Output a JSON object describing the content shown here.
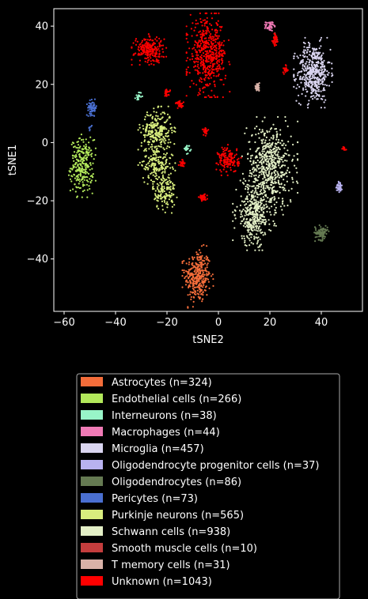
{
  "chart_data": {
    "type": "scatter",
    "title": "",
    "xlabel": "tSNE2",
    "ylabel": "tSNE1",
    "xlim": [
      -64,
      56
    ],
    "ylim": [
      -58,
      46
    ],
    "xticks": [
      -60,
      -40,
      -20,
      0,
      20,
      40
    ],
    "yticks": [
      -40,
      -20,
      0,
      20,
      40
    ],
    "grid": false,
    "legend_placement": "below",
    "background": "#000000",
    "series": [
      {
        "name": "Astrocytes (n=324)",
        "color": "#f46d3a",
        "count": 324,
        "clusters": [
          {
            "cx": -8,
            "cy": -46,
            "sx": 2.5,
            "sy": 4.5,
            "share": 1.0
          }
        ]
      },
      {
        "name": "Endothelial cells (n=266)",
        "color": "#b2e85b",
        "count": 266,
        "clusters": [
          {
            "cx": -53,
            "cy": -8,
            "sx": 2.2,
            "sy": 4.5,
            "share": 1.0
          }
        ]
      },
      {
        "name": "Interneurons (n=38)",
        "color": "#98f5c8",
        "count": 38,
        "clusters": [
          {
            "cx": -31,
            "cy": 16,
            "sx": 0.6,
            "sy": 0.8,
            "share": 0.5
          },
          {
            "cx": -12,
            "cy": -2,
            "sx": 0.6,
            "sy": 0.8,
            "share": 0.5
          }
        ]
      },
      {
        "name": "Macrophages (n=44)",
        "color": "#f07ab6",
        "count": 44,
        "clusters": [
          {
            "cx": 20,
            "cy": 40,
            "sx": 0.8,
            "sy": 0.8,
            "share": 1.0
          }
        ]
      },
      {
        "name": "Microglia (n=457)",
        "color": "#dad5f0",
        "count": 457,
        "clusters": [
          {
            "cx": 37,
            "cy": 24,
            "sx": 3.2,
            "sy": 5.0,
            "share": 1.0
          }
        ]
      },
      {
        "name": "Oligodendrocyte progenitor cells (n=37)",
        "color": "#b8b2f0",
        "count": 37,
        "clusters": [
          {
            "cx": 47,
            "cy": -15,
            "sx": 0.6,
            "sy": 1.0,
            "share": 1.0
          }
        ]
      },
      {
        "name": "Oligodendrocytes (n=86)",
        "color": "#657a52",
        "count": 86,
        "clusters": [
          {
            "cx": 40,
            "cy": -31,
            "sx": 1.2,
            "sy": 1.2,
            "share": 1.0
          }
        ]
      },
      {
        "name": "Pericytes (n=73)",
        "color": "#4a6fd0",
        "count": 73,
        "clusters": [
          {
            "cx": -49,
            "cy": 12,
            "sx": 0.9,
            "sy": 1.2,
            "share": 0.92
          },
          {
            "cx": -50,
            "cy": 5,
            "sx": 0.4,
            "sy": 0.6,
            "share": 0.08
          }
        ]
      },
      {
        "name": "Purkinje neurons (n=565)",
        "color": "#d8ed7e",
        "count": 565,
        "clusters": [
          {
            "cx": -24,
            "cy": 4,
            "sx": 3.0,
            "sy": 3.5,
            "share": 0.45
          },
          {
            "cx": -24,
            "cy": -7,
            "sx": 3.0,
            "sy": 3.0,
            "share": 0.3
          },
          {
            "cx": -21,
            "cy": -17,
            "sx": 2.2,
            "sy": 3.0,
            "share": 0.25
          }
        ]
      },
      {
        "name": "Schwann cells (n=938)",
        "color": "#e3efc6",
        "count": 938,
        "clusters": [
          {
            "cx": 20,
            "cy": -8,
            "sx": 4.5,
            "sy": 7.0,
            "share": 0.6
          },
          {
            "cx": 14,
            "cy": -25,
            "sx": 3.5,
            "sy": 5.0,
            "share": 0.4
          }
        ]
      },
      {
        "name": "Smooth muscle cells (n=10)",
        "color": "#c43d3d",
        "count": 10,
        "clusters": [
          {
            "cx": 22,
            "cy": 36,
            "sx": 0.4,
            "sy": 0.8,
            "share": 1.0
          }
        ]
      },
      {
        "name": "T memory cells (n=31)",
        "color": "#d9b2a8",
        "count": 31,
        "clusters": [
          {
            "cx": 15,
            "cy": 19,
            "sx": 0.5,
            "sy": 0.6,
            "share": 1.0
          }
        ]
      },
      {
        "name": "Unknown (n=1043)",
        "color": "#ff0000",
        "count": 1043,
        "clusters": [
          {
            "cx": -4,
            "cy": 30,
            "sx": 3.5,
            "sy": 6.0,
            "share": 0.48
          },
          {
            "cx": -27,
            "cy": 32,
            "sx": 2.8,
            "sy": 2.2,
            "share": 0.2
          },
          {
            "cx": 4,
            "cy": -6,
            "sx": 2.0,
            "sy": 2.2,
            "share": 0.14
          },
          {
            "cx": -20,
            "cy": 17,
            "sx": 0.6,
            "sy": 0.6,
            "share": 0.02
          },
          {
            "cx": -15,
            "cy": 13,
            "sx": 0.8,
            "sy": 0.6,
            "share": 0.03
          },
          {
            "cx": -14,
            "cy": -7,
            "sx": 0.6,
            "sy": 0.6,
            "share": 0.02
          },
          {
            "cx": -5,
            "cy": 4,
            "sx": 0.6,
            "sy": 0.7,
            "share": 0.02
          },
          {
            "cx": -6,
            "cy": -19,
            "sx": 0.8,
            "sy": 0.6,
            "share": 0.03
          },
          {
            "cx": 22,
            "cy": 35,
            "sx": 0.5,
            "sy": 1.0,
            "share": 0.03
          },
          {
            "cx": 26,
            "cy": 25,
            "sx": 0.5,
            "sy": 0.7,
            "share": 0.02
          },
          {
            "cx": 49,
            "cy": -2,
            "sx": 0.4,
            "sy": 0.3,
            "share": 0.01
          }
        ]
      }
    ]
  }
}
